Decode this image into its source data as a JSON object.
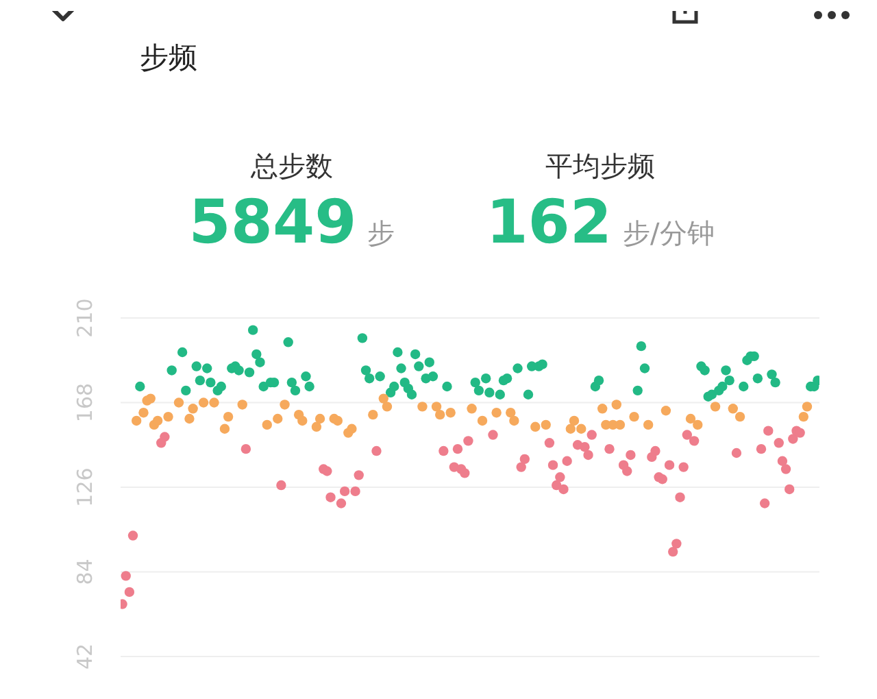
{
  "chart_data": {
    "type": "scatter",
    "title": "步频",
    "annotations": [
      "总步数",
      "5849",
      "步",
      "平均步频",
      "162",
      "步/分钟"
    ],
    "categories": [
      null,
      null,
      null,
      null,
      null,
      null,
      null,
      null,
      null,
      null,
      null,
      null,
      null,
      null,
      null,
      null,
      null,
      null,
      null,
      null,
      null,
      null,
      null,
      null,
      null,
      null,
      null,
      null,
      null,
      null,
      null,
      null,
      null,
      null,
      null,
      null,
      null,
      null,
      null,
      null,
      null,
      null,
      null,
      null,
      null,
      null,
      null,
      null,
      null,
      null,
      null,
      null,
      null,
      null,
      null,
      null,
      null,
      null,
      null,
      null,
      null,
      null,
      null,
      null,
      null,
      null,
      null,
      null,
      null,
      null,
      null,
      null,
      null,
      null,
      null,
      null,
      null,
      null,
      null,
      null,
      null,
      null,
      null,
      null,
      null,
      null,
      null,
      null,
      null,
      null,
      null,
      null,
      null,
      null,
      null,
      null,
      null,
      null,
      null,
      null,
      null,
      null,
      null,
      null,
      null,
      null,
      null,
      null,
      null,
      null,
      null,
      null,
      null,
      null,
      null,
      null,
      null,
      null,
      null,
      null,
      null,
      null,
      null,
      null,
      null,
      null,
      null,
      null,
      null,
      null,
      null,
      null,
      null,
      null,
      null,
      null,
      null,
      null,
      null,
      null,
      null,
      null,
      null,
      null,
      null,
      null,
      null,
      null,
      null,
      null,
      null,
      null,
      null,
      null,
      null,
      null,
      null,
      null,
      null,
      null,
      null,
      null,
      null,
      null,
      null,
      null,
      null,
      null,
      null,
      null,
      null,
      null,
      null,
      null,
      null,
      null,
      null,
      null,
      null,
      null,
      null,
      null,
      null,
      null,
      null,
      null,
      null,
      null,
      null,
      null,
      null,
      null,
      null,
      null,
      null,
      null,
      null,
      null
    ],
    "series": [
      {
        "color": "#22b985",
        "values": [
          null,
          null,
          null,
          null,
          null,
          176,
          null,
          null,
          null,
          null,
          null,
          null,
          null,
          null,
          184,
          null,
          null,
          193,
          174,
          null,
          null,
          186,
          179,
          null,
          185,
          178,
          null,
          174,
          176,
          null,
          null,
          185,
          186,
          184,
          null,
          null,
          183,
          204,
          192,
          188,
          176,
          null,
          178,
          178,
          null,
          null,
          null,
          198,
          178,
          174,
          null,
          null,
          181,
          176,
          null,
          null,
          null,
          null,
          null,
          null,
          null,
          null,
          null,
          null,
          null,
          null,
          null,
          null,
          200,
          184,
          180,
          null,
          null,
          181,
          null,
          null,
          173,
          176,
          193,
          185,
          178,
          175,
          172,
          192,
          186,
          null,
          180,
          188,
          181,
          null,
          null,
          null,
          176,
          null,
          null,
          null,
          null,
          null,
          null,
          null,
          178,
          174,
          null,
          180,
          173,
          null,
          null,
          172,
          179,
          180,
          null,
          null,
          185,
          null,
          null,
          172,
          186,
          null,
          186,
          187,
          null,
          null,
          null,
          null,
          null,
          null,
          null,
          null,
          null,
          null,
          null,
          null,
          null,
          null,
          176,
          179,
          null,
          null,
          null,
          null,
          null,
          null,
          null,
          null,
          null,
          null,
          174,
          196,
          185,
          null,
          null,
          null,
          null,
          null,
          null,
          null,
          null,
          null,
          null,
          null,
          null,
          null,
          null,
          null,
          186,
          184,
          171,
          172,
          null,
          174,
          176,
          184,
          179,
          null,
          null,
          null,
          176,
          189,
          191,
          191,
          180,
          null,
          null,
          null,
          182,
          178,
          null,
          null,
          null,
          null,
          null,
          null,
          null,
          null,
          null,
          176,
          176,
          179
        ]
      },
      {
        "color": "#f6a95c",
        "values": [
          null,
          null,
          null,
          null,
          159,
          null,
          163,
          169,
          170,
          157,
          159,
          null,
          null,
          161,
          null,
          null,
          168,
          null,
          null,
          160,
          165,
          null,
          null,
          168,
          null,
          null,
          168,
          null,
          null,
          155,
          161,
          null,
          null,
          null,
          167,
          null,
          null,
          null,
          null,
          null,
          null,
          157,
          null,
          null,
          160,
          null,
          167,
          null,
          null,
          null,
          162,
          159,
          null,
          null,
          null,
          156,
          160,
          null,
          null,
          null,
          160,
          159,
          null,
          null,
          153,
          155,
          null,
          null,
          null,
          null,
          null,
          162,
          null,
          null,
          170,
          166,
          null,
          null,
          null,
          null,
          null,
          null,
          null,
          null,
          null,
          166,
          null,
          null,
          null,
          166,
          162,
          null,
          null,
          163,
          null,
          null,
          null,
          null,
          null,
          165,
          null,
          null,
          159,
          null,
          null,
          null,
          163,
          null,
          null,
          null,
          163,
          159,
          null,
          null,
          null,
          null,
          null,
          156,
          null,
          null,
          157,
          null,
          null,
          null,
          null,
          null,
          null,
          155,
          159,
          null,
          155,
          null,
          null,
          null,
          null,
          null,
          165,
          157,
          null,
          157,
          167,
          157,
          null,
          null,
          null,
          161,
          null,
          null,
          null,
          157,
          null,
          null,
          null,
          null,
          164,
          null,
          null,
          null,
          null,
          null,
          null,
          160,
          null,
          157,
          null,
          null,
          null,
          null,
          166,
          null,
          null,
          null,
          null,
          165,
          null,
          161,
          null,
          null,
          null,
          null,
          null,
          null,
          null,
          null,
          null,
          null,
          null,
          null,
          null,
          null,
          null,
          null,
          null,
          161,
          166,
          null,
          null,
          null
        ]
      },
      {
        "color": "#ee7d8c",
        "values": [
          68,
          82,
          74,
          102,
          null,
          null,
          null,
          null,
          null,
          null,
          null,
          148,
          151,
          null,
          null,
          null,
          null,
          null,
          null,
          null,
          null,
          null,
          null,
          null,
          null,
          null,
          null,
          null,
          null,
          null,
          null,
          null,
          null,
          null,
          null,
          145,
          null,
          null,
          null,
          null,
          null,
          null,
          null,
          null,
          null,
          127,
          null,
          null,
          null,
          null,
          null,
          null,
          null,
          null,
          null,
          null,
          null,
          135,
          134,
          121,
          null,
          null,
          118,
          124,
          null,
          null,
          124,
          132,
          null,
          null,
          null,
          null,
          144,
          null,
          null,
          null,
          null,
          null,
          null,
          null,
          null,
          null,
          null,
          null,
          null,
          null,
          null,
          null,
          null,
          null,
          null,
          144,
          null,
          null,
          136,
          145,
          135,
          133,
          149,
          null,
          null,
          null,
          null,
          null,
          null,
          152,
          null,
          null,
          null,
          null,
          null,
          null,
          null,
          136,
          140,
          null,
          null,
          null,
          null,
          null,
          null,
          148,
          137,
          127,
          131,
          125,
          139,
          null,
          null,
          147,
          null,
          146,
          142,
          152,
          null,
          null,
          null,
          null,
          145,
          null,
          null,
          null,
          137,
          134,
          142,
          null,
          null,
          null,
          null,
          null,
          141,
          144,
          131,
          130,
          null,
          137,
          94,
          98,
          121,
          136,
          152,
          null,
          149,
          null,
          null,
          null,
          null,
          null,
          null,
          null,
          null,
          null,
          null,
          null,
          143,
          null,
          null,
          null,
          null,
          null,
          null,
          145,
          118,
          154,
          null,
          null,
          148,
          139,
          135,
          125,
          150,
          154,
          153,
          null,
          null,
          null,
          null,
          null
        ]
      }
    ],
    "ylim": [
      42,
      210
    ],
    "yticks": [
      42,
      84,
      126,
      168,
      210
    ],
    "grid": "y",
    "tick_labels": "y",
    "marker": "circle"
  }
}
